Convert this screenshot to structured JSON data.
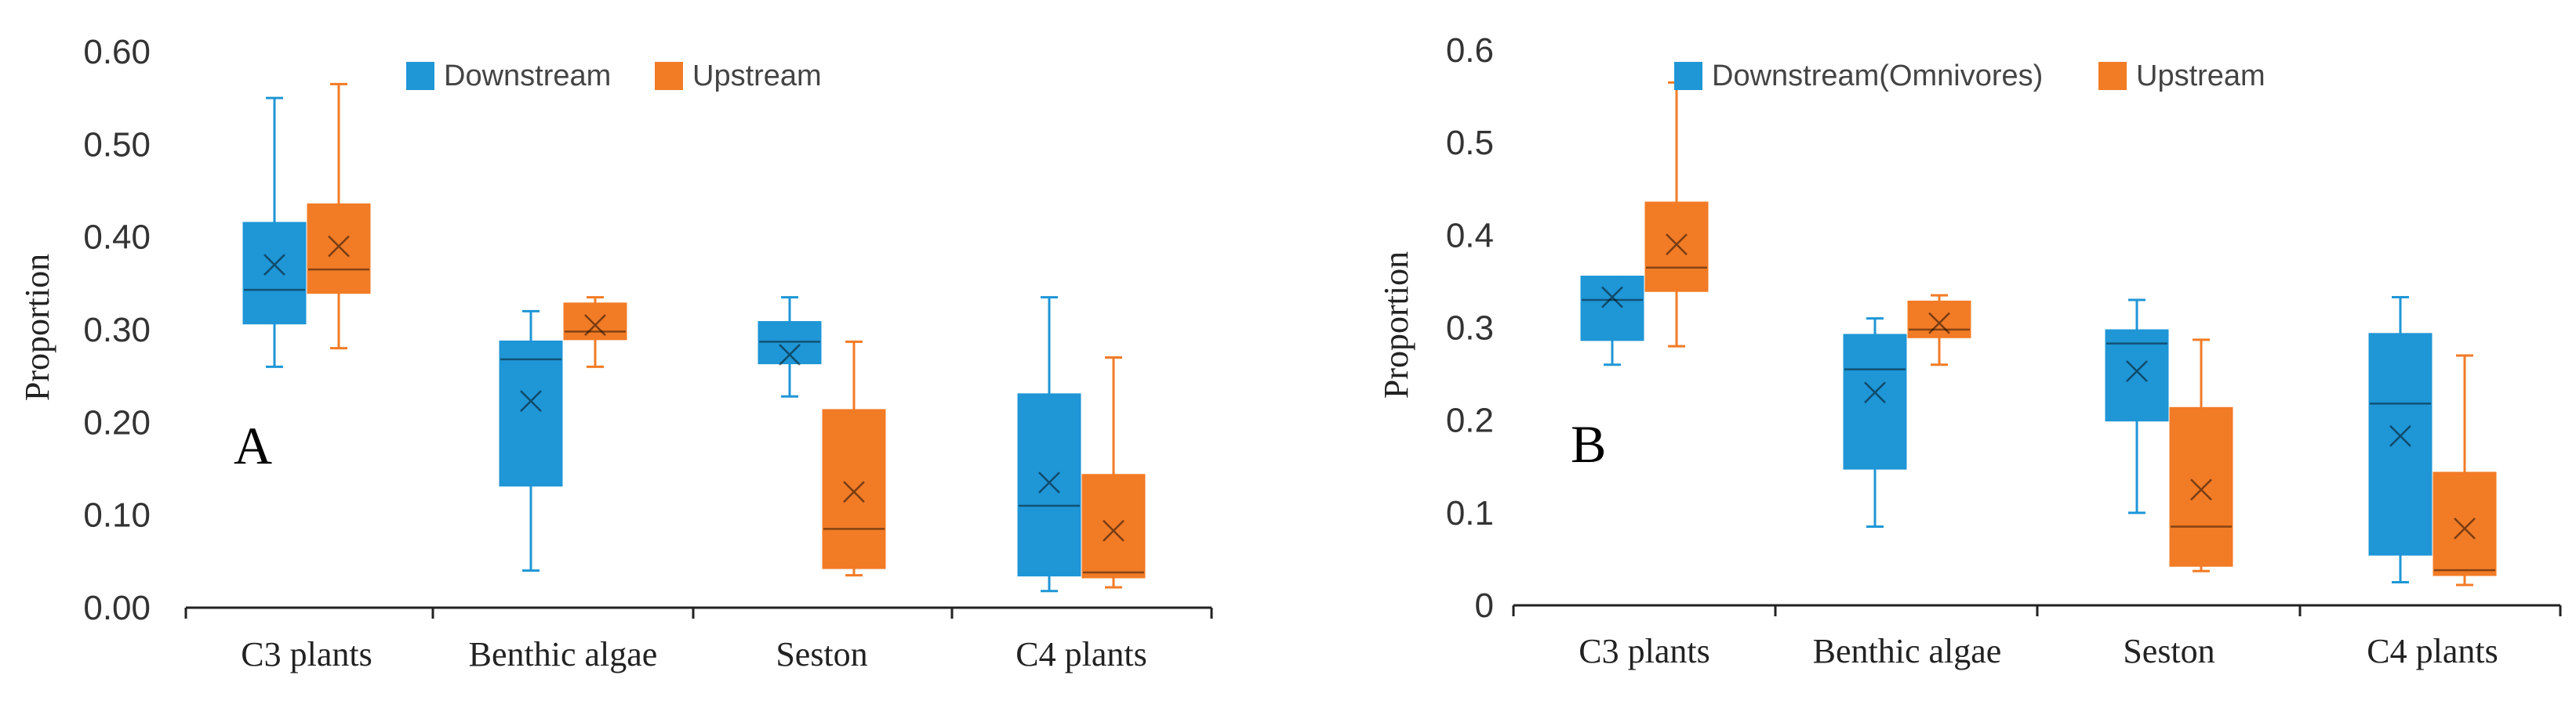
{
  "colors": {
    "downstream": "#1f96d6",
    "upstream": "#f27b26"
  },
  "chart_data": [
    {
      "type": "box",
      "panel_label": "A",
      "ylabel": "Proportion",
      "ylim": [
        0,
        0.6
      ],
      "yticks": [
        0,
        0.1,
        0.2,
        0.3,
        0.4,
        0.5,
        0.6
      ],
      "ytick_labels": [
        "0.00",
        "0.10",
        "0.20",
        "0.30",
        "0.40",
        "0.50",
        "0.60"
      ],
      "categories": [
        "C3 plants",
        "Benthic algae",
        "Seston",
        "C4 plants"
      ],
      "legend_position": "top-center",
      "series": [
        {
          "name": "Downstream",
          "color": "#1f96d6",
          "boxes": [
            {
              "min": 0.26,
              "q1": 0.307,
              "median": 0.343,
              "q3": 0.415,
              "max": 0.55,
              "mean": 0.37
            },
            {
              "min": 0.04,
              "q1": 0.132,
              "median": 0.268,
              "q3": 0.287,
              "max": 0.32,
              "mean": 0.223
            },
            {
              "min": 0.228,
              "q1": 0.264,
              "median": 0.287,
              "q3": 0.308,
              "max": 0.335,
              "mean": 0.273
            },
            {
              "min": 0.018,
              "q1": 0.035,
              "median": 0.11,
              "q3": 0.23,
              "max": 0.335,
              "mean": 0.135
            }
          ]
        },
        {
          "name": "Upstream",
          "color": "#f27b26",
          "boxes": [
            {
              "min": 0.28,
              "q1": 0.34,
              "median": 0.365,
              "q3": 0.435,
              "max": 0.565,
              "mean": 0.39
            },
            {
              "min": 0.26,
              "q1": 0.29,
              "median": 0.298,
              "q3": 0.328,
              "max": 0.335,
              "mean": 0.305
            },
            {
              "min": 0.035,
              "q1": 0.043,
              "median": 0.085,
              "q3": 0.213,
              "max": 0.287,
              "mean": 0.125
            },
            {
              "min": 0.022,
              "q1": 0.033,
              "median": 0.038,
              "q3": 0.143,
              "max": 0.27,
              "mean": 0.083
            }
          ]
        }
      ]
    },
    {
      "type": "box",
      "panel_label": "B",
      "ylabel": "Proportion",
      "ylim": [
        0,
        0.6
      ],
      "yticks": [
        0,
        0.1,
        0.2,
        0.3,
        0.4,
        0.5,
        0.6
      ],
      "ytick_labels": [
        "0",
        "0.1",
        "0.2",
        "0.3",
        "0.4",
        "0.5",
        "0.6"
      ],
      "categories": [
        "C3 plants",
        "Benthic algae",
        "Seston",
        "C4 plants"
      ],
      "legend_position": "top-center",
      "series": [
        {
          "name": "Downstream(Omnivores)",
          "color": "#1f96d6",
          "boxes": [
            {
              "min": 0.26,
              "q1": 0.287,
              "median": 0.33,
              "q3": 0.355,
              "max": 0.355,
              "mean": 0.333
            },
            {
              "min": 0.085,
              "q1": 0.148,
              "median": 0.255,
              "q3": 0.292,
              "max": 0.31,
              "mean": 0.23
            },
            {
              "min": 0.1,
              "q1": 0.2,
              "median": 0.283,
              "q3": 0.297,
              "max": 0.33,
              "mean": 0.253
            },
            {
              "min": 0.025,
              "q1": 0.055,
              "median": 0.218,
              "q3": 0.293,
              "max": 0.333,
              "mean": 0.183
            }
          ]
        },
        {
          "name": "Upstream",
          "color": "#f27b26",
          "boxes": [
            {
              "min": 0.28,
              "q1": 0.34,
              "median": 0.365,
              "q3": 0.435,
              "max": 0.565,
              "mean": 0.39
            },
            {
              "min": 0.26,
              "q1": 0.29,
              "median": 0.298,
              "q3": 0.328,
              "max": 0.335,
              "mean": 0.305
            },
            {
              "min": 0.037,
              "q1": 0.043,
              "median": 0.085,
              "q3": 0.213,
              "max": 0.287,
              "mean": 0.125
            },
            {
              "min": 0.022,
              "q1": 0.033,
              "median": 0.038,
              "q3": 0.143,
              "max": 0.27,
              "mean": 0.083
            }
          ]
        }
      ]
    }
  ]
}
